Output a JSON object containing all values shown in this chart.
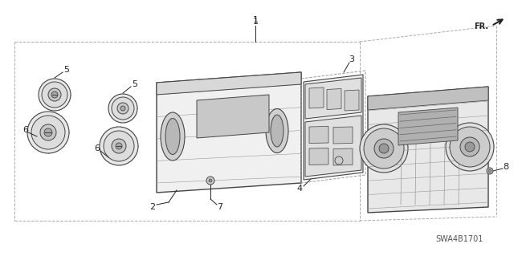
{
  "bg_color": "#ffffff",
  "line_color": "#444444",
  "dark_color": "#222222",
  "gray_fill": "#e8e8e8",
  "mid_gray": "#c8c8c8",
  "dark_gray": "#999999",
  "diagram_label": "SWA4B1701",
  "fr_label": "FR.",
  "figsize": [
    6.4,
    3.19
  ],
  "dpi": 100
}
